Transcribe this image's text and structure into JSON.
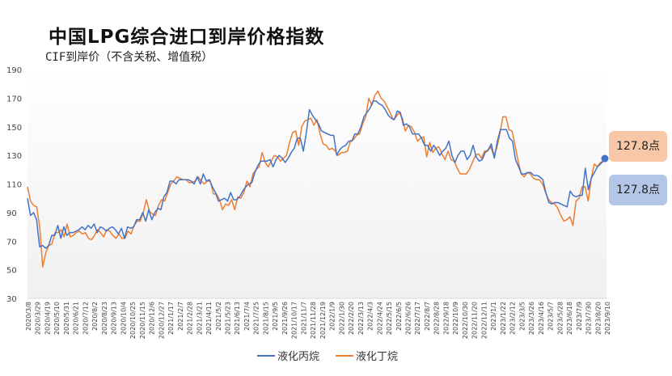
{
  "title": "中国LPG综合进口到岸价格指数",
  "subtitle": "CIF到岸价（不含关税、增值税）",
  "callouts": {
    "propane_last": "127.8点",
    "butane_last": "127.8点"
  },
  "colors": {
    "propane": "#4472c4",
    "butane": "#ed7d31",
    "callout_orange": "#f8c7a7",
    "callout_blue": "#b3c6e7"
  },
  "chart_data": {
    "type": "line",
    "title": "中国LPG综合进口到岸价格指数",
    "subtitle": "CIF到岸价（不含关税、增值税）",
    "ylim": [
      30,
      190
    ],
    "yticks": [
      30,
      50,
      70,
      90,
      110,
      130,
      150,
      170,
      190
    ],
    "x_tick_labels": [
      "2020/3/8",
      "2020/3/29",
      "2020/4/19",
      "2020/5/10",
      "2020/5/31",
      "2020/6/21",
      "2020/7/12",
      "2020/8/2",
      "2020/8/23",
      "2020/9/13",
      "2020/10/4",
      "2020/10/25",
      "2020/11/15",
      "2020/12/6",
      "2020/12/27",
      "2021/1/17",
      "2021/2/7",
      "2021/2/28",
      "2021/3/21",
      "2021/4/11",
      "2021/5/2",
      "2021/5/23",
      "2021/6/13",
      "2021/7/4",
      "2021/7/25",
      "2021/8/15",
      "2021/9/5",
      "2021/9/26",
      "2021/10/17",
      "2021/11/7",
      "2021/11/28",
      "2021/12/19",
      "2022/1/9",
      "2022/1/30",
      "2022/2/20",
      "2022/3/13",
      "2022/4/3",
      "2022/4/24",
      "2022/5/15",
      "2022/6/5",
      "2022/6/26",
      "2022/7/17",
      "2022/8/7",
      "2022/8/28",
      "2022/9/18",
      "2022/10/9",
      "2022/10/30",
      "2022/11/20",
      "2022/12/11",
      "2023/1/1",
      "2023/1/22",
      "2023/2/12",
      "2023/3/5",
      "2023/3/26",
      "2023/4/16",
      "2023/5/7",
      "2023/5/28",
      "2023/6/18",
      "2023/7/9",
      "2023/7/30",
      "2023/8/20",
      "2023/9/10"
    ],
    "series": [
      {
        "name": "液化丙烷",
        "color": "#4472c4",
        "values": [
          100,
          88,
          90,
          85,
          66,
          67,
          65,
          67,
          74,
          74,
          81,
          72,
          80,
          74,
          76,
          76,
          77,
          78,
          80,
          78,
          81,
          79,
          82,
          76,
          80,
          79,
          77,
          79,
          80,
          78,
          75,
          79,
          72,
          80,
          79,
          80,
          85,
          85,
          90,
          84,
          92,
          85,
          90,
          93,
          92,
          101,
          104,
          112,
          112,
          110,
          113,
          113,
          113,
          113,
          112,
          110,
          115,
          110,
          117,
          112,
          113,
          108,
          104,
          98,
          99,
          100,
          98,
          104,
          99,
          99,
          101,
          105,
          108,
          110,
          111,
          118,
          123,
          126,
          126,
          126,
          127,
          122,
          127,
          130,
          128,
          125,
          128,
          132,
          135,
          142,
          142,
          133,
          146,
          162,
          158,
          155,
          152,
          147,
          146,
          145,
          144,
          144,
          130,
          134,
          136,
          137,
          140,
          140,
          145,
          145,
          150,
          157,
          160,
          163,
          168,
          168,
          166,
          165,
          162,
          158,
          156,
          155,
          161,
          160,
          151,
          152,
          150,
          145,
          145,
          145,
          142,
          137,
          137,
          133,
          137,
          134,
          130,
          133,
          135,
          140,
          130,
          125,
          130,
          133,
          133,
          127,
          130,
          137,
          129,
          126,
          127,
          132,
          134,
          138,
          128,
          140,
          148,
          148,
          148,
          142,
          140,
          127,
          122,
          117,
          117,
          118,
          118,
          116,
          116,
          115,
          113,
          104,
          97,
          96,
          97,
          97,
          96,
          95,
          94,
          105,
          102,
          101,
          102,
          102,
          121,
          106,
          114,
          118,
          122,
          124,
          126,
          127.8
        ]
      },
      {
        "name": "液化丁烷",
        "color": "#ed7d31",
        "values": [
          108,
          98,
          95,
          94,
          80,
          52,
          62,
          67,
          68,
          76,
          76,
          78,
          73,
          82,
          73,
          74,
          76,
          77,
          75,
          76,
          72,
          71,
          74,
          78,
          76,
          73,
          78,
          77,
          74,
          72,
          75,
          72,
          72,
          77,
          75,
          81,
          84,
          84,
          90,
          99,
          91,
          89,
          88,
          95,
          99,
          98,
          104,
          110,
          112,
          115,
          114,
          113,
          113,
          111,
          111,
          112,
          115,
          112,
          110,
          112,
          112,
          103,
          103,
          99,
          92,
          96,
          95,
          99,
          92,
          101,
          100,
          104,
          112,
          108,
          117,
          120,
          122,
          132,
          125,
          122,
          126,
          130,
          129,
          126,
          128,
          130,
          139,
          146,
          147,
          137,
          150,
          154,
          155,
          156,
          151,
          155,
          145,
          138,
          137,
          134,
          135,
          133,
          130,
          132,
          132,
          133,
          140,
          141,
          144,
          145,
          152,
          157,
          170,
          165,
          172,
          175,
          170,
          168,
          164,
          160,
          155,
          157,
          160,
          156,
          147,
          151,
          150,
          146,
          140,
          142,
          143,
          129,
          139,
          132,
          135,
          136,
          131,
          127,
          133,
          127,
          126,
          121,
          117,
          117,
          117,
          120,
          125,
          130,
          131,
          128,
          133,
          133,
          136,
          130,
          135,
          145,
          157,
          157,
          148,
          147,
          137,
          126,
          117,
          115,
          118,
          117,
          114,
          113,
          113,
          110,
          104,
          99,
          97,
          96,
          93,
          88,
          84,
          85,
          87,
          81,
          98,
          100,
          108,
          108,
          98,
          114,
          124,
          122,
          125,
          126,
          127.8
        ]
      }
    ],
    "legend": [
      "液化丙烷",
      "液化丁烷"
    ],
    "last_value": 127.8
  }
}
